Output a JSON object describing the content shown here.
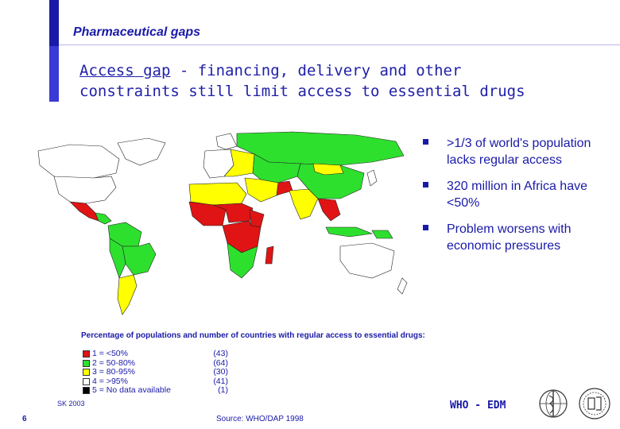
{
  "header": {
    "kicker": "Pharmaceutical gaps",
    "title_underlined": "Access gap",
    "title_rest_line1": " - financing, delivery and other",
    "title_line2": "constraints still limit access to essential drugs"
  },
  "bullets": [
    ">1/3 of world's population lacks regular access",
    "320 million in Africa have <50%",
    "Problem worsens with economic pressures"
  ],
  "map": {
    "colors": {
      "red": "#e01414",
      "green": "#2ee02e",
      "yellow": "#ffff00",
      "white": "#ffffff",
      "black": "#000000",
      "ocean": "#ffffff"
    }
  },
  "caption": "Percentage of populations and number of countries with regular access to essential drugs:",
  "legend": [
    {
      "label": "1 = <50%",
      "count": "(43)",
      "color": "#e01414"
    },
    {
      "label": "2 = 50-80%",
      "count": "(64)",
      "color": "#2ee02e"
    },
    {
      "label": "3 = 80-95%",
      "count": "(30)",
      "color": "#ffff00"
    },
    {
      "label": "4 = >95%",
      "count": "(41)",
      "color": "#ffffff"
    },
    {
      "label": "5 = No data available",
      "count": "(1)",
      "color": "#000000"
    }
  ],
  "footer": {
    "sk": "SK 2003",
    "page": "6",
    "source": "Source: WHO/DAP 1998",
    "who": "WHO - EDM"
  },
  "theme": {
    "text": "#1a1aa8",
    "bar": "#3a3ad6"
  }
}
